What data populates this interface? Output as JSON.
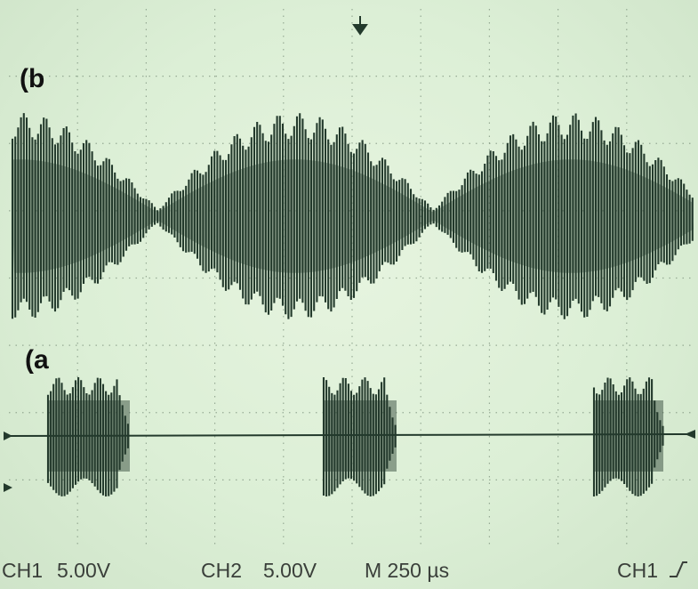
{
  "panels": {
    "top_label": "(b",
    "bottom_label": "(a"
  },
  "status": {
    "ch1_label": "CH1",
    "ch1_volts_div": "5.00V",
    "ch2_label": "CH2",
    "ch2_volts_div": "5.00V",
    "timebase": "M 250 µs",
    "trigger_source": "CH1",
    "trigger_slope_icon": "rising-edge-icon"
  },
  "colors": {
    "screen": "#dcefd6",
    "trace": "#233a2c",
    "grid": "#7a8f7a"
  }
}
